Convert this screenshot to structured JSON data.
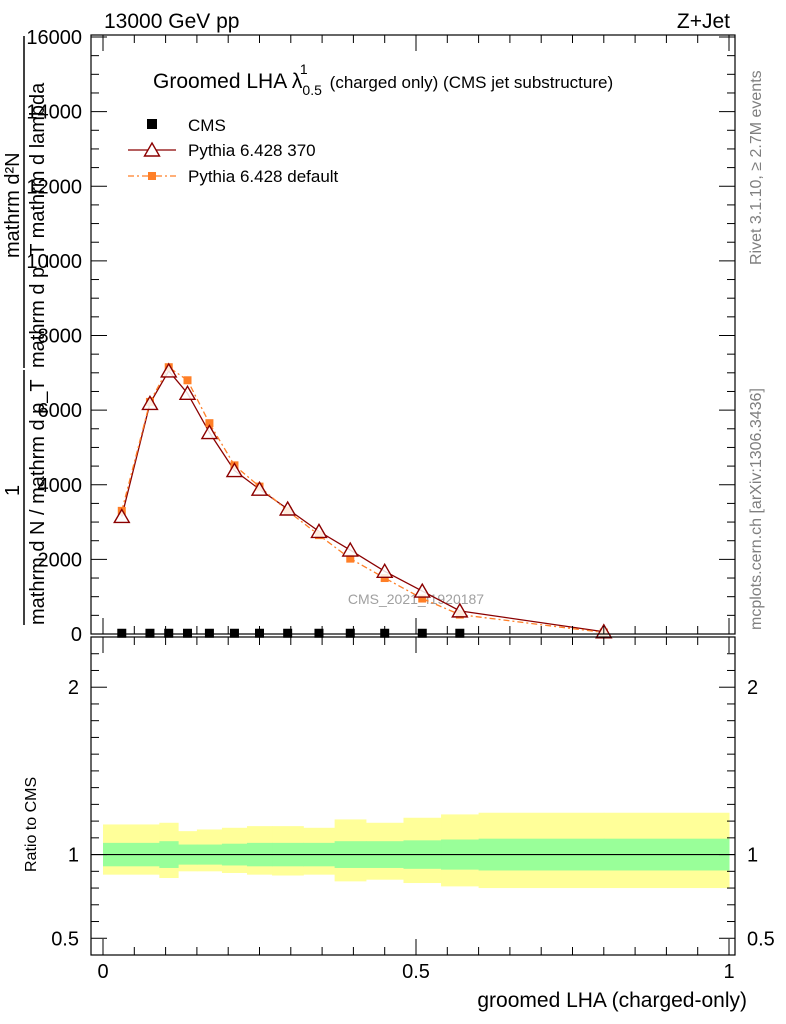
{
  "header": {
    "energy_label": "13000 GeV pp",
    "process_label": "Z+Jet"
  },
  "side_texts": {
    "rivet": "Rivet 3.1.10, ≥ 2.7M events",
    "mcplots": "mcplots.cern.ch [arXiv:1306.3436]"
  },
  "watermark": "CMS_2021_I1920187",
  "chart_data": [
    {
      "type": "line",
      "panel": "main",
      "title": "Groomed LHA λ",
      "title_sup": "1",
      "title_sub": "0.5",
      "title_suffix": "(charged only) (CMS jet substructure)",
      "ylabel_numerator": "mathrm d²N",
      "ylabel_denominator": "mathrm d p_T mathrm d lambda",
      "ylabel_prefix_num": "1",
      "ylabel_prefix_den": "mathrm d N / mathrm d p_T",
      "xlim": [
        0,
        1
      ],
      "ylim": [
        0,
        16000
      ],
      "yticks": [
        0,
        2000,
        4000,
        6000,
        8000,
        10000,
        12000,
        14000,
        16000
      ],
      "ytick_labels": [
        "0",
        "2000",
        "4000",
        "6000",
        "8000",
        "10000",
        "12000",
        "14000",
        "16000"
      ],
      "legend": {
        "cms_label": "CMS",
        "p370_label": "Pythia 6.428 370",
        "pdef_label": "Pythia 6.428 default"
      },
      "series": [
        {
          "name": "CMS",
          "color": "#000000",
          "marker": "square",
          "x": [
            0.03,
            0.075,
            0.105,
            0.135,
            0.17,
            0.21,
            0.25,
            0.295,
            0.345,
            0.395,
            0.45,
            0.51,
            0.57
          ],
          "values": [
            20,
            20,
            20,
            20,
            20,
            20,
            20,
            20,
            20,
            20,
            20,
            20,
            20
          ]
        },
        {
          "name": "Pythia 6.428 370",
          "color": "#8b0000",
          "marker": "open-triangle",
          "x": [
            0.03,
            0.075,
            0.105,
            0.135,
            0.17,
            0.21,
            0.25,
            0.295,
            0.345,
            0.395,
            0.45,
            0.51,
            0.57,
            0.8
          ],
          "values": [
            3150,
            6180,
            7050,
            6450,
            5400,
            4380,
            3880,
            3350,
            2750,
            2250,
            1680,
            1150,
            620,
            60
          ]
        },
        {
          "name": "Pythia 6.428 default",
          "color": "#ff7f27",
          "marker": "filled-square",
          "x": [
            0.03,
            0.075,
            0.105,
            0.135,
            0.17,
            0.21,
            0.25,
            0.295,
            0.345,
            0.395,
            0.45,
            0.51,
            0.57,
            0.8
          ],
          "values": [
            3300,
            6220,
            7150,
            6800,
            5650,
            4520,
            3950,
            3300,
            2650,
            2020,
            1500,
            950,
            520,
            40
          ]
        }
      ]
    },
    {
      "type": "area",
      "panel": "ratio",
      "ylabel": "Ratio to CMS",
      "xlabel": "groomed LHA (charged-only)",
      "xlim": [
        0,
        1
      ],
      "ylim": [
        0.4,
        2.3
      ],
      "xticks": [
        0,
        0.5,
        1
      ],
      "xtick_labels": [
        "0",
        "0.5",
        "1"
      ],
      "yticks": [
        0.5,
        1,
        2
      ],
      "ytick_labels": [
        "0.5",
        "1",
        "2"
      ],
      "bins": [
        0,
        0.09,
        0.12,
        0.15,
        0.19,
        0.23,
        0.27,
        0.32,
        0.37,
        0.42,
        0.48,
        0.54,
        0.6,
        0.8,
        1.0
      ],
      "inner_band": {
        "color": "#99ff99",
        "lo": [
          0.93,
          0.92,
          0.94,
          0.94,
          0.935,
          0.93,
          0.93,
          0.93,
          0.92,
          0.92,
          0.915,
          0.91,
          0.905,
          0.905
        ],
        "hi": [
          1.07,
          1.08,
          1.06,
          1.06,
          1.065,
          1.07,
          1.07,
          1.07,
          1.08,
          1.08,
          1.085,
          1.09,
          1.095,
          1.095
        ]
      },
      "outer_band": {
        "color": "#ffff99",
        "lo": [
          0.88,
          0.86,
          0.9,
          0.9,
          0.89,
          0.88,
          0.875,
          0.88,
          0.84,
          0.85,
          0.83,
          0.81,
          0.8,
          0.8
        ],
        "hi": [
          1.18,
          1.19,
          1.14,
          1.15,
          1.16,
          1.17,
          1.17,
          1.16,
          1.21,
          1.19,
          1.22,
          1.24,
          1.25,
          1.25
        ]
      },
      "reference_line": 1
    }
  ]
}
